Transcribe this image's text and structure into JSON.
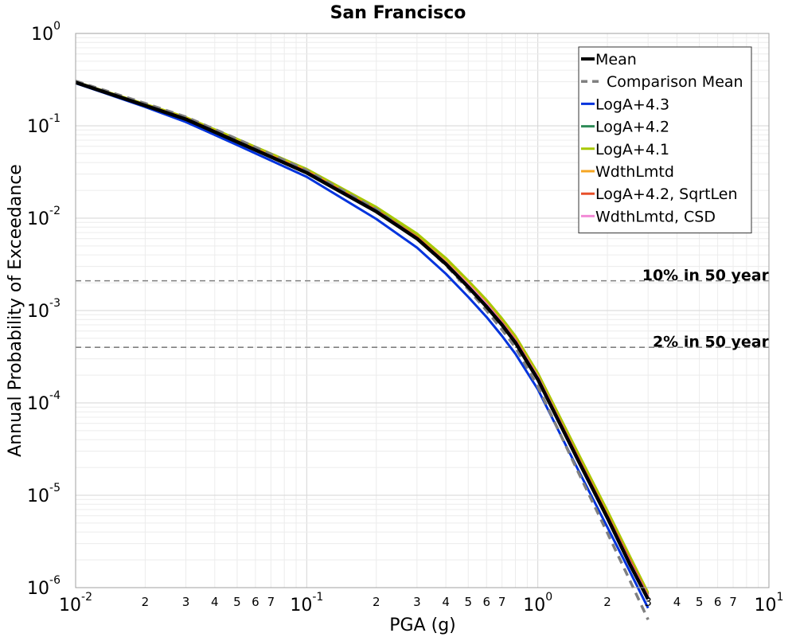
{
  "chart_data": {
    "type": "line",
    "title": "San Francisco",
    "xlabel": "PGA (g)",
    "ylabel": "Annual Probability of Exceedance",
    "x_scale": "log",
    "y_scale": "log",
    "xlim": [
      0.01,
      10
    ],
    "ylim": [
      1e-06,
      1
    ],
    "grid": true,
    "legend_position": "top-right",
    "x_ticks": [
      {
        "base": "10",
        "exp": "-2"
      },
      {
        "base": "10",
        "exp": "-1"
      },
      {
        "base": "10",
        "exp": "0"
      },
      {
        "base": "10",
        "exp": "1"
      }
    ],
    "x_minor_labels": [
      "2",
      "3",
      "4",
      "5",
      "6",
      "7"
    ],
    "y_ticks": [
      {
        "base": "10",
        "exp": "0"
      },
      {
        "base": "10",
        "exp": "-1"
      },
      {
        "base": "10",
        "exp": "-2"
      },
      {
        "base": "10",
        "exp": "-3"
      },
      {
        "base": "10",
        "exp": "-4"
      },
      {
        "base": "10",
        "exp": "-5"
      },
      {
        "base": "10",
        "exp": "-6"
      }
    ],
    "reference_lines": [
      {
        "label": "10% in 50 year",
        "y": 0.0021,
        "color": "#808080"
      },
      {
        "label": "2% in 50 year",
        "y": 0.0004,
        "color": "#808080"
      }
    ],
    "series": [
      {
        "name": "LogA+4.3",
        "color": "#0033dd",
        "width": 3,
        "dash": "",
        "x": [
          0.01,
          0.02,
          0.03,
          0.05,
          0.1,
          0.2,
          0.3,
          0.4,
          0.5,
          0.6,
          0.7,
          0.8,
          1.0,
          1.5,
          2.0,
          2.5,
          3.0
        ],
        "y": [
          0.29,
          0.16,
          0.11,
          0.062,
          0.028,
          0.0098,
          0.0048,
          0.0025,
          0.0014,
          0.00085,
          0.00053,
          0.00034,
          0.00014,
          1.85e-05,
          4.5e-06,
          1.5e-06,
          6e-07
        ]
      },
      {
        "name": "LogA+4.2",
        "color": "#2e8b57",
        "width": 3,
        "dash": "",
        "x": [
          0.01,
          0.02,
          0.03,
          0.05,
          0.1,
          0.2,
          0.3,
          0.4,
          0.5,
          0.6,
          0.7,
          0.8,
          1.0,
          1.5,
          2.0,
          2.5,
          3.0
        ],
        "y": [
          0.3,
          0.17,
          0.122,
          0.07,
          0.033,
          0.0125,
          0.0064,
          0.0034,
          0.002,
          0.00122,
          0.00077,
          0.0005,
          0.0002,
          2.6e-05,
          6.4e-06,
          2.1e-06,
          8.5e-07
        ]
      },
      {
        "name": "LogA+4.1",
        "color": "#a8c800",
        "width": 3,
        "dash": "",
        "x": [
          0.01,
          0.02,
          0.03,
          0.05,
          0.1,
          0.2,
          0.3,
          0.4,
          0.5,
          0.6,
          0.7,
          0.8,
          1.0,
          1.5,
          2.0,
          2.5,
          3.0
        ],
        "y": [
          0.3,
          0.172,
          0.124,
          0.072,
          0.034,
          0.0132,
          0.0068,
          0.0037,
          0.0021,
          0.0013,
          0.00082,
          0.00053,
          0.00021,
          2.8e-05,
          6.8e-06,
          2.2e-06,
          8.8e-07
        ]
      },
      {
        "name": "WdthLmtd",
        "color": "#f5a623",
        "width": 3,
        "dash": "",
        "x": [
          0.01,
          0.02,
          0.03,
          0.05,
          0.1,
          0.2,
          0.3,
          0.4,
          0.5,
          0.6,
          0.7,
          0.8,
          1.0,
          1.5,
          2.0,
          2.5,
          3.0
        ],
        "y": [
          0.299,
          0.169,
          0.121,
          0.069,
          0.0325,
          0.0123,
          0.0063,
          0.0034,
          0.00195,
          0.0012,
          0.00075,
          0.00049,
          0.000195,
          2.55e-05,
          6.2e-06,
          2e-06,
          8.2e-07
        ]
      },
      {
        "name": "LogA+4.2, SqrtLen",
        "color": "#e8502a",
        "width": 3,
        "dash": "",
        "x": [
          0.01,
          0.02,
          0.03,
          0.05,
          0.1,
          0.2,
          0.3,
          0.4,
          0.5,
          0.6,
          0.7,
          0.8,
          1.0,
          1.5,
          2.0,
          2.5,
          3.0
        ],
        "y": [
          0.298,
          0.168,
          0.12,
          0.068,
          0.032,
          0.0122,
          0.0062,
          0.0033,
          0.0019,
          0.00118,
          0.00074,
          0.00048,
          0.00019,
          2.5e-05,
          6e-06,
          2e-06,
          8e-07
        ]
      },
      {
        "name": "WdthLmtd, CSD",
        "color": "#f28ad6",
        "width": 3,
        "dash": "",
        "x": [
          0.01,
          0.02,
          0.03,
          0.05,
          0.1,
          0.2,
          0.3,
          0.4,
          0.5,
          0.6,
          0.7,
          0.8,
          1.0,
          1.5,
          2.0,
          2.5,
          3.0
        ],
        "y": [
          0.297,
          0.167,
          0.119,
          0.067,
          0.0315,
          0.012,
          0.0061,
          0.0033,
          0.0019,
          0.00117,
          0.00073,
          0.00047,
          0.00019,
          2.45e-05,
          5.9e-06,
          1.9e-06,
          7.9e-07
        ]
      },
      {
        "name": "Comparison Mean",
        "color": "#808080",
        "width": 3.5,
        "dash": "10,7",
        "x": [
          0.01,
          0.02,
          0.03,
          0.05,
          0.1,
          0.2,
          0.3,
          0.4,
          0.5,
          0.6,
          0.7,
          0.8,
          1.0,
          1.5,
          2.0,
          2.5,
          3.0
        ],
        "y": [
          0.305,
          0.175,
          0.125,
          0.072,
          0.033,
          0.0125,
          0.006,
          0.0031,
          0.0017,
          0.001,
          0.00062,
          0.0004,
          0.00015,
          1.75e-05,
          3.9e-06,
          1.2e-06,
          4.5e-07
        ]
      },
      {
        "name": "Mean",
        "color": "#000000",
        "width": 4.5,
        "dash": "",
        "x": [
          0.01,
          0.02,
          0.03,
          0.05,
          0.1,
          0.2,
          0.3,
          0.4,
          0.5,
          0.6,
          0.7,
          0.8,
          1.0,
          1.5,
          2.0,
          2.5,
          3.0
        ],
        "y": [
          0.295,
          0.166,
          0.118,
          0.067,
          0.031,
          0.0118,
          0.006,
          0.0032,
          0.0018,
          0.0011,
          0.0007,
          0.00045,
          0.00018,
          2.35e-05,
          5.7e-06,
          1.8e-06,
          7.5e-07
        ]
      }
    ],
    "legend_order": [
      "Mean",
      "Comparison Mean",
      "LogA+4.3",
      "LogA+4.2",
      "LogA+4.1",
      "WdthLmtd",
      "LogA+4.2, SqrtLen",
      "WdthLmtd, CSD"
    ]
  }
}
